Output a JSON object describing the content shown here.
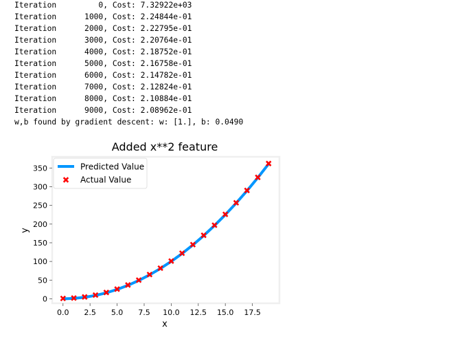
{
  "output_log": {
    "lines": [
      "Iteration         0, Cost: 7.32922e+03",
      "Iteration      1000, Cost: 2.24844e-01",
      "Iteration      2000, Cost: 2.22795e-01",
      "Iteration      3000, Cost: 2.20764e-01",
      "Iteration      4000, Cost: 2.18752e-01",
      "Iteration      5000, Cost: 2.16758e-01",
      "Iteration      6000, Cost: 2.14782e-01",
      "Iteration      7000, Cost: 2.12824e-01",
      "Iteration      8000, Cost: 2.10884e-01",
      "Iteration      9000, Cost: 2.08962e-01",
      "w,b found by gradient descent: w: [1.], b: 0.0490"
    ]
  },
  "chart_data": {
    "type": "line",
    "title": "Added x**2 feature",
    "xlabel": "x",
    "ylabel": "y",
    "xlim": [
      -1,
      20
    ],
    "ylim": [
      -12,
      380
    ],
    "xticks": [
      "0.0",
      "2.5",
      "5.0",
      "7.5",
      "10.0",
      "12.5",
      "15.0",
      "17.5"
    ],
    "xtick_values": [
      0,
      2.5,
      5,
      7.5,
      10,
      12.5,
      15,
      17.5
    ],
    "yticks": [
      "0",
      "50",
      "100",
      "150",
      "200",
      "250",
      "300",
      "350"
    ],
    "ytick_values": [
      0,
      50,
      100,
      150,
      200,
      250,
      300,
      350
    ],
    "grid": false,
    "legend_position": "top-left",
    "x": [
      0,
      1,
      2,
      3,
      4,
      5,
      6,
      7,
      8,
      9,
      10,
      11,
      12,
      13,
      14,
      15,
      16,
      17,
      18,
      19
    ],
    "series": [
      {
        "name": "Predicted Value",
        "kind": "line",
        "color": "#0096ff",
        "values": [
          0.05,
          1.05,
          4.05,
          9.05,
          16.05,
          25.05,
          36.05,
          49.05,
          64.05,
          81.05,
          100.05,
          121.05,
          144.05,
          169.05,
          196.05,
          225.05,
          256.05,
          289.05,
          324.05,
          361.05
        ]
      },
      {
        "name": "Actual Value",
        "kind": "scatter",
        "marker": "x",
        "color": "#ff0000",
        "values": [
          1,
          2,
          5,
          10,
          17,
          26,
          37,
          50,
          65,
          82,
          101,
          122,
          145,
          170,
          197,
          226,
          257,
          290,
          325,
          362
        ]
      }
    ],
    "frame_color": "#efefef",
    "background": "#ffffff"
  }
}
